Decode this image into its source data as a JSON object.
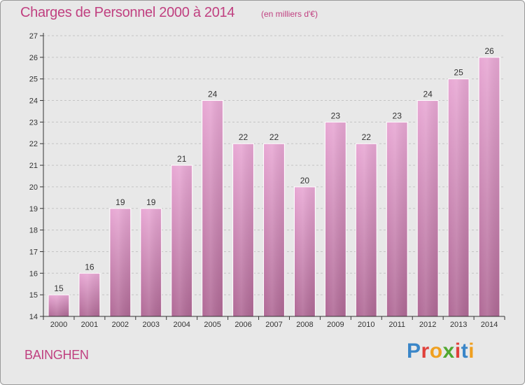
{
  "header": {
    "title": "Charges de Personnel 2000 à 2014",
    "subtitle": "(en milliers d'€)"
  },
  "footer": {
    "location": "BAINGHEN",
    "logo_text": "Proxiti",
    "logo_colors": [
      "#3a86c8",
      "#e0403a",
      "#f0a020",
      "#50a830",
      "#e0403a",
      "#3a86c8",
      "#f0a020"
    ]
  },
  "colors": {
    "bar_top": "#e8a8d4",
    "bar_bottom": "#b06a96",
    "bar_edge": "#ffffff",
    "grid": "#c4c4c4",
    "axis": "#333333"
  },
  "chart_data": {
    "type": "bar",
    "title": "Charges de Personnel 2000 à 2014",
    "subtitle": "(en milliers d'€)",
    "categories": [
      "2000",
      "2001",
      "2002",
      "2003",
      "2004",
      "2005",
      "2006",
      "2007",
      "2008",
      "2009",
      "2010",
      "2011",
      "2012",
      "2013",
      "2014"
    ],
    "values": [
      15,
      16,
      19,
      19,
      21,
      24,
      22,
      22,
      20,
      23,
      22,
      23,
      24,
      25,
      26
    ],
    "ylim": [
      14,
      27
    ],
    "yticks": [
      14,
      15,
      16,
      17,
      18,
      19,
      20,
      21,
      22,
      23,
      24,
      25,
      26,
      27
    ],
    "grid": true,
    "data_labels": true,
    "xlabel": "",
    "ylabel": ""
  }
}
